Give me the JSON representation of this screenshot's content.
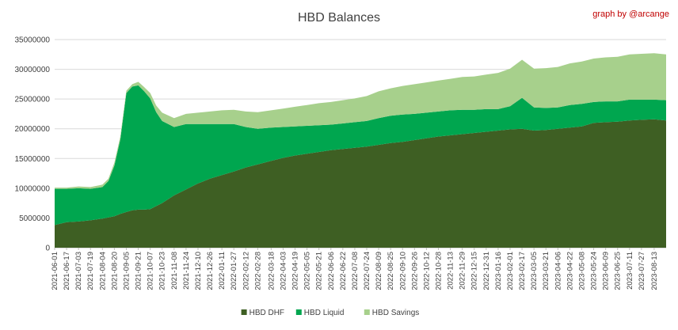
{
  "chart_data": {
    "type": "area",
    "stacked": true,
    "title": "HBD Balances",
    "credit": "graph by @arcange",
    "xlabel": "",
    "ylabel": "",
    "ylim": [
      0,
      35000000
    ],
    "yticks": [
      0,
      5000000,
      10000000,
      15000000,
      20000000,
      25000000,
      30000000,
      35000000
    ],
    "ytick_labels": [
      "0",
      "5000000",
      "10000000",
      "15000000",
      "20000000",
      "25000000",
      "30000000",
      "35000000"
    ],
    "grid": true,
    "legend_position": "bottom",
    "x_tick_labels": [
      "2021-06-01",
      "2021-06-17",
      "2021-07-03",
      "2021-07-19",
      "2021-08-04",
      "2021-08-20",
      "2021-09-05",
      "2021-09-21",
      "2021-10-07",
      "2021-10-23",
      "2021-11-08",
      "2021-11-24",
      "2021-12-10",
      "2021-12-26",
      "2022-01-11",
      "2022-01-27",
      "2022-02-12",
      "2022-02-28",
      "2022-03-18",
      "2022-04-03",
      "2022-04-19",
      "2022-05-05",
      "2022-05-21",
      "2022-06-06",
      "2022-06-22",
      "2022-07-08",
      "2022-07-24",
      "2022-08-09",
      "2022-08-25",
      "2022-09-10",
      "2022-09-26",
      "2022-10-12",
      "2022-10-28",
      "2022-11-13",
      "2022-11-29",
      "2022-12-15",
      "2022-12-31",
      "2023-01-16",
      "2023-02-01",
      "2023-02-17",
      "2023-03-05",
      "2023-03-21",
      "2023-04-06",
      "2023-04-22",
      "2023-05-08",
      "2023-05-24",
      "2023-06-09",
      "2023-06-25",
      "2023-07-11",
      "2023-07-27",
      "2023-08-13"
    ],
    "x": [
      "2021-06-01",
      "2021-06-17",
      "2021-07-03",
      "2021-07-19",
      "2021-08-04",
      "2021-08-12",
      "2021-08-20",
      "2021-08-28",
      "2021-09-05",
      "2021-09-13",
      "2021-09-21",
      "2021-09-29",
      "2021-10-07",
      "2021-10-15",
      "2021-10-23",
      "2021-11-08",
      "2021-11-24",
      "2021-12-10",
      "2021-12-26",
      "2022-01-11",
      "2022-01-27",
      "2022-02-12",
      "2022-02-28",
      "2022-03-18",
      "2022-04-03",
      "2022-04-19",
      "2022-05-05",
      "2022-05-21",
      "2022-06-06",
      "2022-06-22",
      "2022-07-08",
      "2022-07-24",
      "2022-08-09",
      "2022-08-25",
      "2022-09-10",
      "2022-09-26",
      "2022-10-12",
      "2022-10-28",
      "2022-11-13",
      "2022-11-29",
      "2022-12-15",
      "2022-12-31",
      "2023-01-16",
      "2023-02-01",
      "2023-02-17",
      "2023-03-05",
      "2023-03-21",
      "2023-04-06",
      "2023-04-22",
      "2023-05-08",
      "2023-05-24",
      "2023-06-09",
      "2023-06-25",
      "2023-07-11",
      "2023-07-27",
      "2023-08-13",
      "2023-08-29"
    ],
    "series": [
      {
        "name": "HBD DHF",
        "color": "#3e5f23",
        "values": [
          3800000,
          4300000,
          4400000,
          4600000,
          4900000,
          5100000,
          5300000,
          5700000,
          6000000,
          6300000,
          6400000,
          6400000,
          6500000,
          7000000,
          7500000,
          8800000,
          9800000,
          10800000,
          11600000,
          12200000,
          12800000,
          13500000,
          14000000,
          14600000,
          15100000,
          15500000,
          15800000,
          16100000,
          16400000,
          16600000,
          16800000,
          17000000,
          17300000,
          17600000,
          17800000,
          18100000,
          18400000,
          18700000,
          18900000,
          19100000,
          19300000,
          19500000,
          19700000,
          19900000,
          20000000,
          19700000,
          19800000,
          20000000,
          20200000,
          20400000,
          21000000,
          21100000,
          21200000,
          21400000,
          21500000,
          21600000,
          21400000
        ]
      },
      {
        "name": "HBD Liquid",
        "color": "#00a64f",
        "values": [
          6100000,
          5600000,
          5600000,
          5300000,
          5300000,
          6100000,
          8500000,
          12500000,
          20000000,
          20800000,
          20900000,
          19900000,
          18600000,
          15800000,
          13800000,
          11500000,
          11000000,
          10000000,
          9200000,
          8600000,
          8000000,
          6800000,
          6000000,
          5600000,
          5200000,
          4900000,
          4700000,
          4500000,
          4300000,
          4300000,
          4300000,
          4300000,
          4500000,
          4600000,
          4600000,
          4400000,
          4300000,
          4200000,
          4200000,
          4100000,
          3900000,
          3800000,
          3600000,
          3900000,
          5200000,
          3900000,
          3700000,
          3600000,
          3800000,
          3800000,
          3500000,
          3500000,
          3400000,
          3500000,
          3400000,
          3300000,
          3400000
        ]
      },
      {
        "name": "HBD Savings",
        "color": "#a7d08c",
        "values": [
          200000,
          200000,
          300000,
          300000,
          400000,
          400000,
          500000,
          500000,
          400000,
          400000,
          600000,
          700000,
          900000,
          1100000,
          1400000,
          1500000,
          1700000,
          1900000,
          2100000,
          2300000,
          2400000,
          2600000,
          2800000,
          2900000,
          3100000,
          3300000,
          3500000,
          3700000,
          3800000,
          3900000,
          4000000,
          4200000,
          4500000,
          4600000,
          4800000,
          5000000,
          5100000,
          5200000,
          5300000,
          5500000,
          5600000,
          5800000,
          6100000,
          6300000,
          6400000,
          6500000,
          6700000,
          6800000,
          7000000,
          7100000,
          7300000,
          7400000,
          7500000,
          7600000,
          7700000,
          7800000,
          7700000
        ]
      }
    ]
  }
}
